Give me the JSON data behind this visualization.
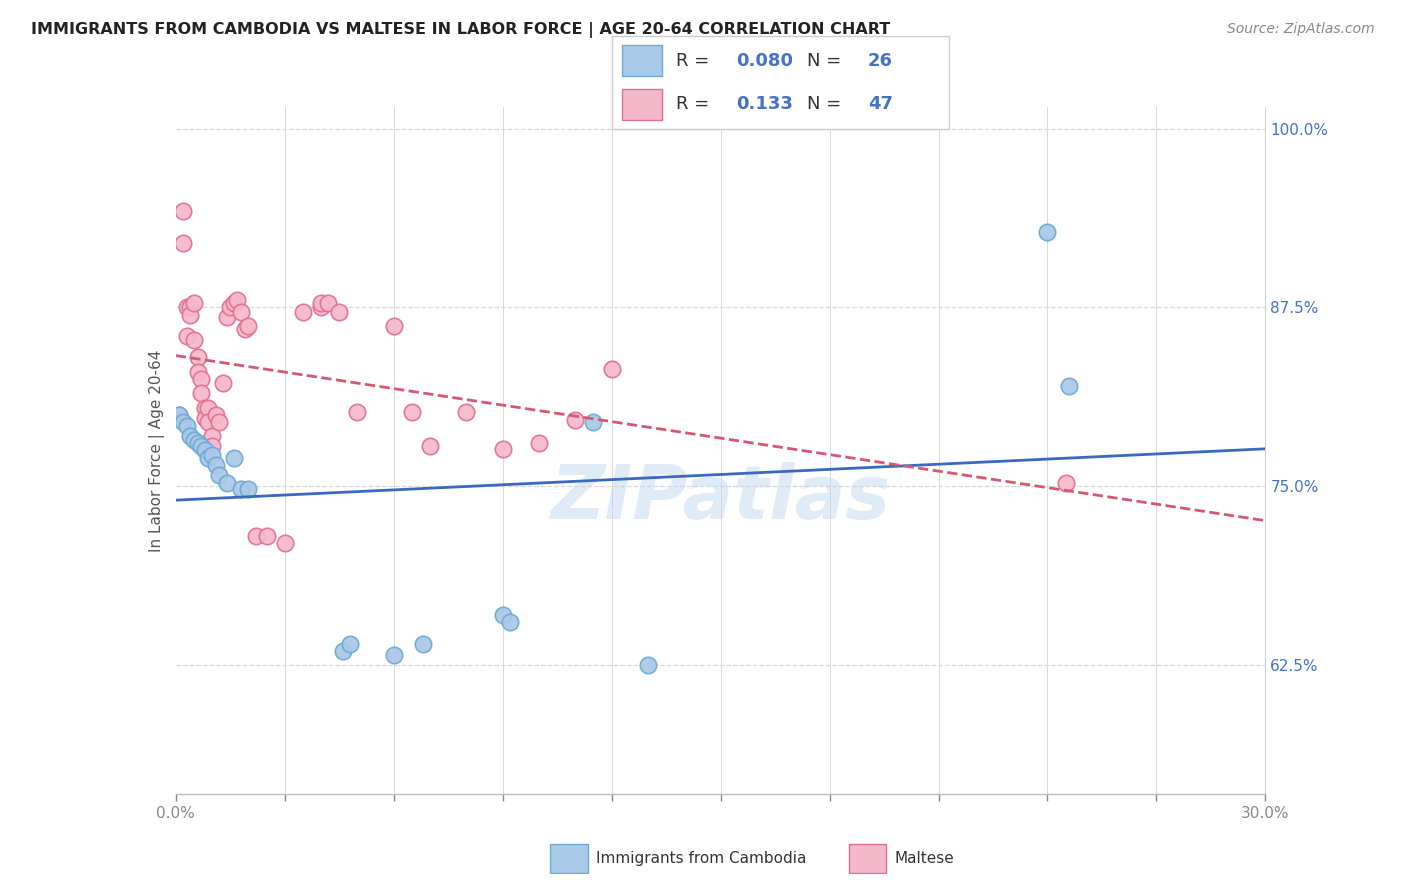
{
  "title": "IMMIGRANTS FROM CAMBODIA VS MALTESE IN LABOR FORCE | AGE 20-64 CORRELATION CHART",
  "source": "Source: ZipAtlas.com",
  "ylabel": "In Labor Force | Age 20-64",
  "xlim": [
    0.0,
    0.3
  ],
  "ylim": [
    0.535,
    1.015
  ],
  "xticks": [
    0.0,
    0.03,
    0.06,
    0.09,
    0.12,
    0.15,
    0.18,
    0.21,
    0.24,
    0.27,
    0.3
  ],
  "xticklabels": [
    "0.0%",
    "",
    "",
    "",
    "",
    "",
    "",
    "",
    "",
    "",
    "30.0%"
  ],
  "yticks": [
    0.625,
    0.75,
    0.875,
    1.0
  ],
  "yticklabels": [
    "62.5%",
    "75.0%",
    "87.5%",
    "100.0%"
  ],
  "cambodia_color": "#aac8e8",
  "cambodia_edge": "#6aaad4",
  "maltese_color": "#f5b8cb",
  "maltese_edge": "#e07090",
  "cambodia_line_color": "#3a6abf",
  "maltese_line_color": "#d45870",
  "R_cambodia": "0.080",
  "N_cambodia": "26",
  "R_maltese": "0.133",
  "N_maltese": "47",
  "watermark": "ZIPatlas",
  "grid_color": "#d8d8d8",
  "cambodia_x": [
    0.001,
    0.002,
    0.003,
    0.004,
    0.005,
    0.006,
    0.007,
    0.008,
    0.009,
    0.01,
    0.011,
    0.012,
    0.014,
    0.016,
    0.018,
    0.02,
    0.046,
    0.048,
    0.06,
    0.068,
    0.09,
    0.092,
    0.115,
    0.13,
    0.24,
    0.246
  ],
  "cambodia_y": [
    0.8,
    0.795,
    0.792,
    0.785,
    0.782,
    0.78,
    0.778,
    0.775,
    0.77,
    0.772,
    0.765,
    0.758,
    0.752,
    0.77,
    0.748,
    0.748,
    0.635,
    0.64,
    0.632,
    0.64,
    0.66,
    0.655,
    0.795,
    0.625,
    0.928,
    0.82
  ],
  "maltese_x": [
    0.001,
    0.002,
    0.002,
    0.003,
    0.003,
    0.004,
    0.004,
    0.005,
    0.005,
    0.006,
    0.006,
    0.007,
    0.007,
    0.008,
    0.008,
    0.009,
    0.009,
    0.01,
    0.01,
    0.011,
    0.012,
    0.013,
    0.014,
    0.015,
    0.016,
    0.017,
    0.018,
    0.019,
    0.02,
    0.022,
    0.025,
    0.03,
    0.035,
    0.04,
    0.04,
    0.042,
    0.045,
    0.05,
    0.06,
    0.065,
    0.07,
    0.08,
    0.09,
    0.1,
    0.11,
    0.12,
    0.245
  ],
  "maltese_y": [
    0.8,
    0.942,
    0.92,
    0.875,
    0.855,
    0.875,
    0.87,
    0.878,
    0.852,
    0.84,
    0.83,
    0.825,
    0.815,
    0.805,
    0.798,
    0.805,
    0.795,
    0.785,
    0.778,
    0.8,
    0.795,
    0.822,
    0.868,
    0.875,
    0.878,
    0.88,
    0.872,
    0.86,
    0.862,
    0.715,
    0.715,
    0.71,
    0.872,
    0.875,
    0.878,
    0.878,
    0.872,
    0.802,
    0.862,
    0.802,
    0.778,
    0.802,
    0.776,
    0.78,
    0.796,
    0.832,
    0.752
  ]
}
